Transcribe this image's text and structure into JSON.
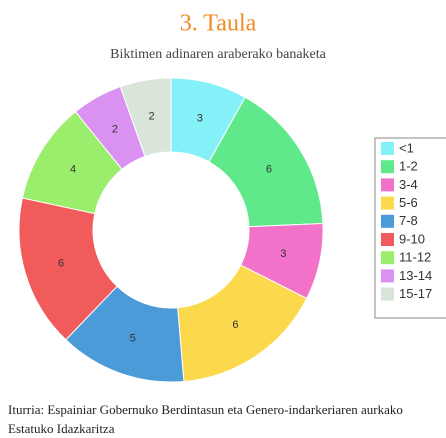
{
  "chart_data": {
    "type": "donut",
    "title": "3. Taula",
    "subtitle": "Biktimen adinaren araberako banaketa",
    "categories": [
      "<1",
      "1-2",
      "3-4",
      "5-6",
      "7-8",
      "9-10",
      "11-12",
      "13-14",
      "15-17"
    ],
    "values": [
      3,
      6,
      3,
      6,
      5,
      6,
      4,
      2,
      2
    ],
    "colors": [
      "#84f1f8",
      "#5fe98a",
      "#f271c9",
      "#fcd94c",
      "#4b9bd9",
      "#f25b5b",
      "#9bee6c",
      "#da92f2",
      "#d9e5d9"
    ],
    "legend": "right",
    "source": "Iturria: Espainiar Gobernuko Berdintasun eta Genero-indarkeriaren aurkako Estatuko Idazkaritza"
  }
}
